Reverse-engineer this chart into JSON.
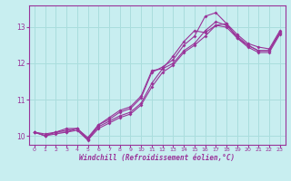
{
  "xlabel": "Windchill (Refroidissement éolien,°C)",
  "background_color": "#c8eef0",
  "line_color": "#993399",
  "grid_color": "#aadddd",
  "xlim": [
    -0.5,
    23.5
  ],
  "ylim": [
    9.75,
    13.6
  ],
  "yticks": [
    10,
    11,
    12,
    13
  ],
  "xticks": [
    0,
    1,
    2,
    3,
    4,
    5,
    6,
    7,
    8,
    9,
    10,
    11,
    12,
    13,
    14,
    15,
    16,
    17,
    18,
    19,
    20,
    21,
    22,
    23
  ],
  "series": [
    [
      10.1,
      10.0,
      10.1,
      10.15,
      10.2,
      9.9,
      10.25,
      10.4,
      10.55,
      10.65,
      10.9,
      11.45,
      11.85,
      12.0,
      12.35,
      12.55,
      12.9,
      13.15,
      13.05,
      12.75,
      12.5,
      12.35,
      12.35,
      12.85
    ],
    [
      10.1,
      10.0,
      10.1,
      10.2,
      10.2,
      9.95,
      10.3,
      10.5,
      10.7,
      10.8,
      11.1,
      11.8,
      11.85,
      12.2,
      12.6,
      12.9,
      12.85,
      13.05,
      13.1,
      12.7,
      12.5,
      12.35,
      12.35,
      12.85
    ],
    [
      10.1,
      10.05,
      10.1,
      10.1,
      10.2,
      9.9,
      10.3,
      10.45,
      10.65,
      10.75,
      11.05,
      11.75,
      11.9,
      12.1,
      12.5,
      12.75,
      13.3,
      13.4,
      13.1,
      12.8,
      12.55,
      12.45,
      12.4,
      12.9
    ],
    [
      10.1,
      10.0,
      10.05,
      10.1,
      10.15,
      9.88,
      10.2,
      10.35,
      10.5,
      10.6,
      10.85,
      11.35,
      11.75,
      11.95,
      12.3,
      12.5,
      12.75,
      13.05,
      13.0,
      12.7,
      12.45,
      12.3,
      12.3,
      12.8
    ]
  ]
}
